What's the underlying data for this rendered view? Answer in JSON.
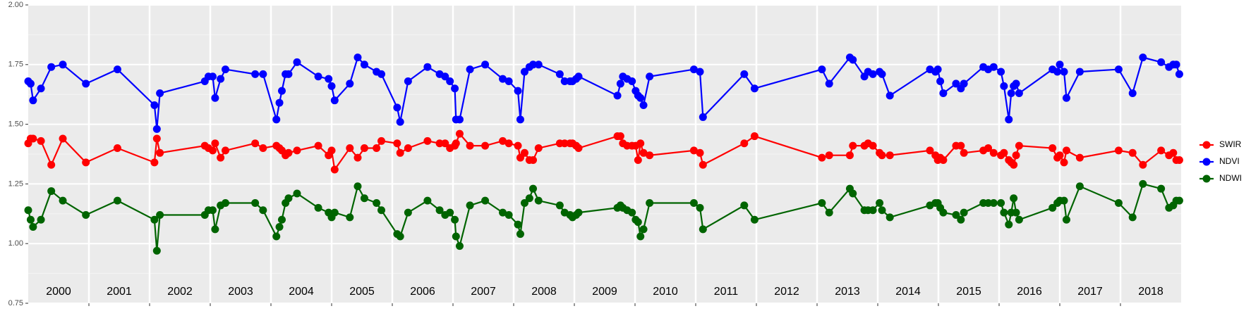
{
  "chart_data": {
    "type": "line",
    "x": [
      2000.0,
      2000.04,
      2000.08,
      2000.21,
      2000.38,
      2000.57,
      2000.95,
      2001.47,
      2002.08,
      2002.12,
      2002.17,
      2002.91,
      2002.97,
      2003.04,
      2003.08,
      2003.17,
      2003.25,
      2003.74,
      2003.87,
      2004.09,
      2004.14,
      2004.18,
      2004.24,
      2004.29,
      2004.43,
      2004.78,
      2004.95,
      2005.0,
      2005.05,
      2005.3,
      2005.43,
      2005.54,
      2005.74,
      2005.82,
      2006.08,
      2006.13,
      2006.26,
      2006.58,
      2006.78,
      2006.87,
      2006.95,
      2007.03,
      2007.05,
      2007.11,
      2007.28,
      2007.53,
      2007.82,
      2007.92,
      2008.07,
      2008.11,
      2008.18,
      2008.26,
      2008.32,
      2008.41,
      2008.76,
      2008.84,
      2008.93,
      2008.97,
      2009.03,
      2009.07,
      2009.71,
      2009.76,
      2009.8,
      2009.87,
      2009.95,
      2010.01,
      2010.05,
      2010.09,
      2010.14,
      2010.24,
      2010.97,
      2011.07,
      2011.12,
      2011.8,
      2011.97,
      2013.08,
      2013.2,
      2013.54,
      2013.59,
      2013.78,
      2013.84,
      2013.92,
      2014.03,
      2014.07,
      2014.2,
      2014.86,
      2014.95,
      2014.99,
      2015.03,
      2015.08,
      2015.29,
      2015.37,
      2015.42,
      2015.74,
      2015.82,
      2015.91,
      2016.03,
      2016.08,
      2016.16,
      2016.2,
      2016.24,
      2016.28,
      2016.33,
      2016.88,
      2016.96,
      2017.0,
      2017.07,
      2017.11,
      2017.33,
      2017.97,
      2018.2,
      2018.37,
      2018.67,
      2018.8,
      2018.87,
      2018.92,
      2018.97
    ],
    "series": [
      {
        "name": "SWIR",
        "color": "#ff0000",
        "values": [
          1.42,
          1.44,
          1.44,
          1.43,
          1.33,
          1.44,
          1.34,
          1.4,
          1.34,
          1.44,
          1.38,
          1.41,
          1.4,
          1.39,
          1.42,
          1.36,
          1.39,
          1.42,
          1.4,
          1.41,
          1.4,
          1.39,
          1.37,
          1.38,
          1.39,
          1.41,
          1.37,
          1.39,
          1.31,
          1.4,
          1.36,
          1.4,
          1.4,
          1.43,
          1.42,
          1.38,
          1.4,
          1.43,
          1.42,
          1.42,
          1.4,
          1.41,
          1.42,
          1.46,
          1.41,
          1.41,
          1.43,
          1.42,
          1.41,
          1.36,
          1.38,
          1.35,
          1.35,
          1.4,
          1.42,
          1.42,
          1.42,
          1.42,
          1.41,
          1.4,
          1.45,
          1.45,
          1.42,
          1.41,
          1.41,
          1.41,
          1.35,
          1.42,
          1.38,
          1.37,
          1.39,
          1.38,
          1.33,
          1.42,
          1.45,
          1.36,
          1.37,
          1.37,
          1.41,
          1.41,
          1.42,
          1.41,
          1.38,
          1.37,
          1.37,
          1.39,
          1.37,
          1.35,
          1.36,
          1.35,
          1.41,
          1.41,
          1.38,
          1.39,
          1.4,
          1.38,
          1.37,
          1.38,
          1.35,
          1.34,
          1.33,
          1.37,
          1.41,
          1.4,
          1.36,
          1.37,
          1.34,
          1.39,
          1.36,
          1.39,
          1.38,
          1.33,
          1.39,
          1.37,
          1.38,
          1.35,
          1.35
        ]
      },
      {
        "name": "NDVI",
        "color": "#0000ff",
        "values": [
          1.68,
          1.67,
          1.6,
          1.65,
          1.74,
          1.75,
          1.67,
          1.73,
          1.58,
          1.48,
          1.63,
          1.68,
          1.7,
          1.7,
          1.61,
          1.69,
          1.73,
          1.71,
          1.71,
          1.52,
          1.59,
          1.64,
          1.71,
          1.71,
          1.76,
          1.7,
          1.69,
          1.66,
          1.6,
          1.67,
          1.78,
          1.75,
          1.72,
          1.71,
          1.57,
          1.51,
          1.68,
          1.74,
          1.71,
          1.7,
          1.68,
          1.65,
          1.52,
          1.52,
          1.73,
          1.75,
          1.69,
          1.68,
          1.64,
          1.52,
          1.72,
          1.74,
          1.75,
          1.75,
          1.71,
          1.68,
          1.68,
          1.68,
          1.69,
          1.7,
          1.62,
          1.67,
          1.7,
          1.69,
          1.68,
          1.64,
          1.62,
          1.61,
          1.58,
          1.7,
          1.73,
          1.72,
          1.53,
          1.71,
          1.65,
          1.73,
          1.67,
          1.78,
          1.77,
          1.7,
          1.72,
          1.71,
          1.72,
          1.71,
          1.62,
          1.73,
          1.72,
          1.73,
          1.68,
          1.63,
          1.67,
          1.65,
          1.67,
          1.74,
          1.73,
          1.74,
          1.72,
          1.66,
          1.52,
          1.63,
          1.66,
          1.67,
          1.63,
          1.73,
          1.72,
          1.75,
          1.72,
          1.61,
          1.72,
          1.73,
          1.63,
          1.78,
          1.76,
          1.74,
          1.75,
          1.75,
          1.71
        ]
      },
      {
        "name": "NDWI",
        "color": "#006400",
        "values": [
          1.14,
          1.1,
          1.07,
          1.1,
          1.22,
          1.18,
          1.12,
          1.18,
          1.1,
          0.97,
          1.12,
          1.12,
          1.14,
          1.14,
          1.06,
          1.16,
          1.17,
          1.17,
          1.14,
          1.03,
          1.07,
          1.1,
          1.17,
          1.19,
          1.21,
          1.15,
          1.13,
          1.11,
          1.13,
          1.11,
          1.24,
          1.19,
          1.17,
          1.14,
          1.04,
          1.03,
          1.13,
          1.18,
          1.14,
          1.12,
          1.13,
          1.1,
          1.03,
          0.99,
          1.16,
          1.18,
          1.13,
          1.12,
          1.08,
          1.04,
          1.17,
          1.19,
          1.23,
          1.18,
          1.16,
          1.13,
          1.12,
          1.11,
          1.12,
          1.13,
          1.15,
          1.16,
          1.15,
          1.14,
          1.13,
          1.1,
          1.09,
          1.03,
          1.06,
          1.17,
          1.17,
          1.15,
          1.06,
          1.16,
          1.1,
          1.17,
          1.13,
          1.23,
          1.21,
          1.14,
          1.14,
          1.14,
          1.17,
          1.14,
          1.11,
          1.16,
          1.17,
          1.17,
          1.15,
          1.13,
          1.12,
          1.1,
          1.13,
          1.17,
          1.17,
          1.17,
          1.17,
          1.13,
          1.08,
          1.13,
          1.19,
          1.13,
          1.1,
          1.15,
          1.17,
          1.18,
          1.18,
          1.1,
          1.24,
          1.17,
          1.11,
          1.25,
          1.23,
          1.15,
          1.16,
          1.18,
          1.18
        ]
      }
    ],
    "xlim": [
      2000,
      2019
    ],
    "xticks": [
      2001,
      2002,
      2003,
      2004,
      2005,
      2006,
      2007,
      2008,
      2009,
      2010,
      2011,
      2012,
      2013,
      2014,
      2015,
      2016,
      2017,
      2018
    ],
    "year_labels": [
      {
        "value": 2000.5,
        "label": "2000"
      },
      {
        "value": 2001.5,
        "label": "2001"
      },
      {
        "value": 2002.5,
        "label": "2002"
      },
      {
        "value": 2003.5,
        "label": "2003"
      },
      {
        "value": 2004.5,
        "label": "2004"
      },
      {
        "value": 2005.5,
        "label": "2005"
      },
      {
        "value": 2006.5,
        "label": "2006"
      },
      {
        "value": 2007.5,
        "label": "2007"
      },
      {
        "value": 2008.5,
        "label": "2008"
      },
      {
        "value": 2009.5,
        "label": "2009"
      },
      {
        "value": 2010.5,
        "label": "2010"
      },
      {
        "value": 2011.5,
        "label": "2011"
      },
      {
        "value": 2012.5,
        "label": "2012"
      },
      {
        "value": 2013.5,
        "label": "2013"
      },
      {
        "value": 2014.5,
        "label": "2014"
      },
      {
        "value": 2015.5,
        "label": "2015"
      },
      {
        "value": 2016.5,
        "label": "2016"
      },
      {
        "value": 2017.5,
        "label": "2017"
      },
      {
        "value": 2018.5,
        "label": "2018"
      }
    ],
    "ylim": [
      0.75,
      2.0
    ],
    "yticks": [
      {
        "value": 0.75,
        "label": "0.75"
      },
      {
        "value": 1.0,
        "label": "1.00"
      },
      {
        "value": 1.25,
        "label": "1.25"
      },
      {
        "value": 1.5,
        "label": "1.50"
      },
      {
        "value": 1.75,
        "label": "1.75"
      },
      {
        "value": 2.0,
        "label": "2.00"
      }
    ],
    "yminor": [
      0.875,
      1.125,
      1.375,
      1.625,
      1.875
    ],
    "grid": true,
    "legend": "right"
  }
}
